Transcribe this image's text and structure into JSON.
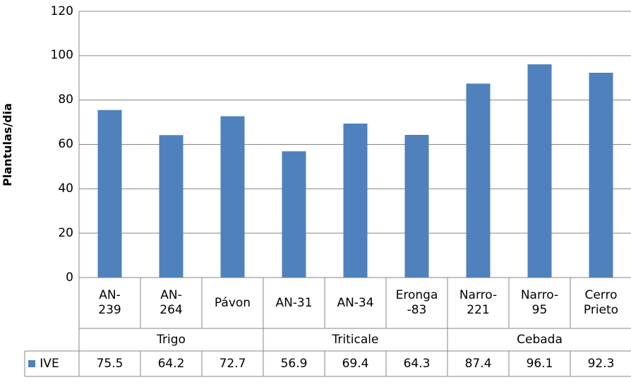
{
  "chart_data": {
    "type": "bar",
    "y_label": "Plantulas/dia",
    "categories": [
      "AN-\n239",
      "AN-\n264",
      "Pávon",
      "AN-31",
      "AN-34",
      "Eronga\n-83",
      "Narro-\n221",
      "Narro-\n95",
      "Cerro\nPrieto"
    ],
    "groups": [
      "Trigo",
      "Triticale",
      "Cebada"
    ],
    "series": [
      {
        "name": "IVE",
        "color": "#4f81bd",
        "values": [
          75.5,
          64.2,
          72.7,
          56.9,
          69.4,
          64.3,
          87.4,
          96.1,
          92.3
        ]
      }
    ],
    "ylim": [
      0,
      120
    ],
    "yticks": [
      0,
      20,
      40,
      60,
      80,
      100,
      120
    ],
    "grid": true
  }
}
